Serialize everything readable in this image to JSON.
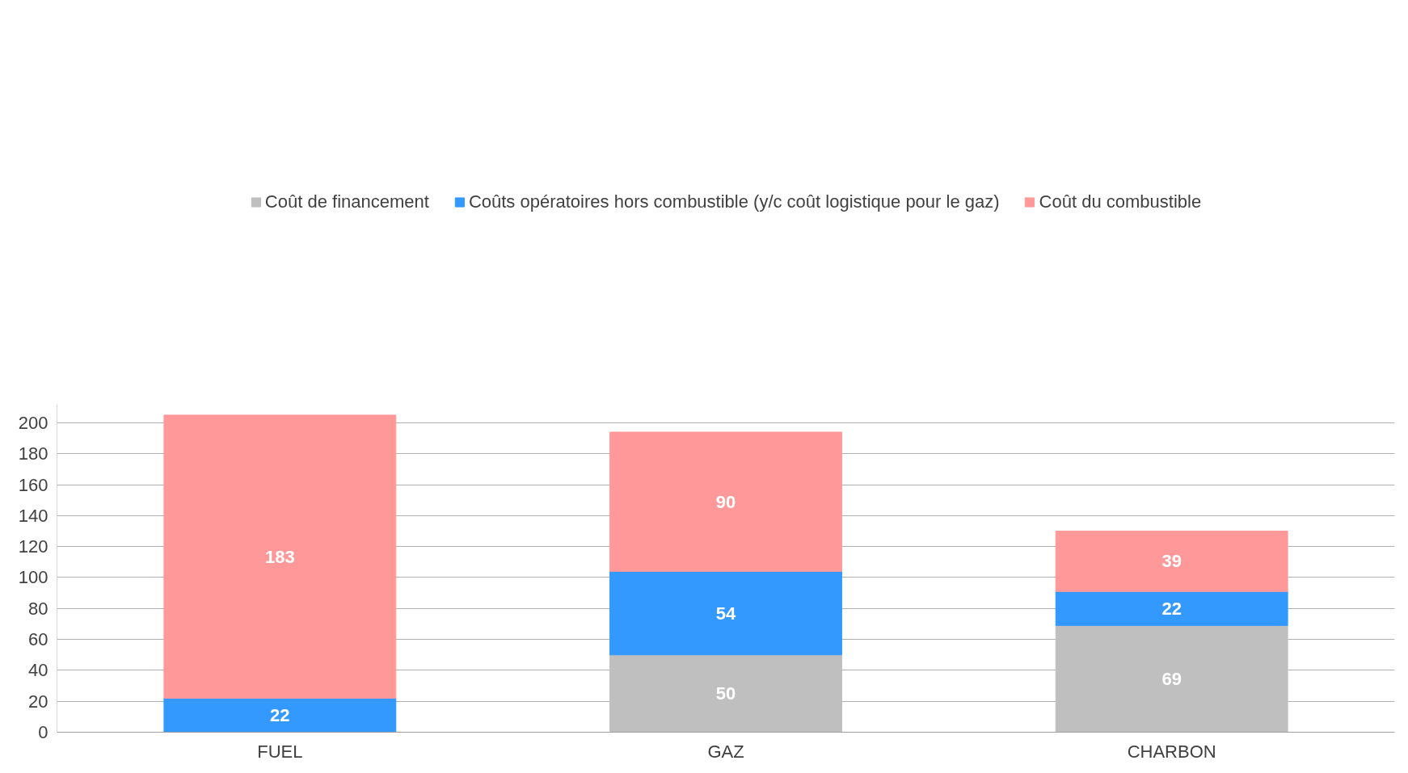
{
  "chart_data": {
    "type": "bar",
    "stacked": true,
    "categories": [
      "FUEL",
      "GAZ",
      "CHARBON"
    ],
    "series": [
      {
        "name": "Coût de financement",
        "color": "#bfbfbf",
        "values": [
          null,
          50,
          69
        ]
      },
      {
        "name": "Coûts opératoires hors combustible (y/c coût logistique pour le gaz)",
        "color": "#3399ff",
        "values": [
          22,
          54,
          22
        ]
      },
      {
        "name": "Coût du combustible",
        "color": "#ff9999",
        "values": [
          183,
          90,
          39
        ]
      }
    ],
    "ylim": [
      0,
      212
    ],
    "yticks": [
      0,
      20,
      40,
      60,
      80,
      100,
      120,
      140,
      160,
      180,
      200
    ],
    "grid": "y",
    "legend": "top",
    "data_labels": true
  }
}
